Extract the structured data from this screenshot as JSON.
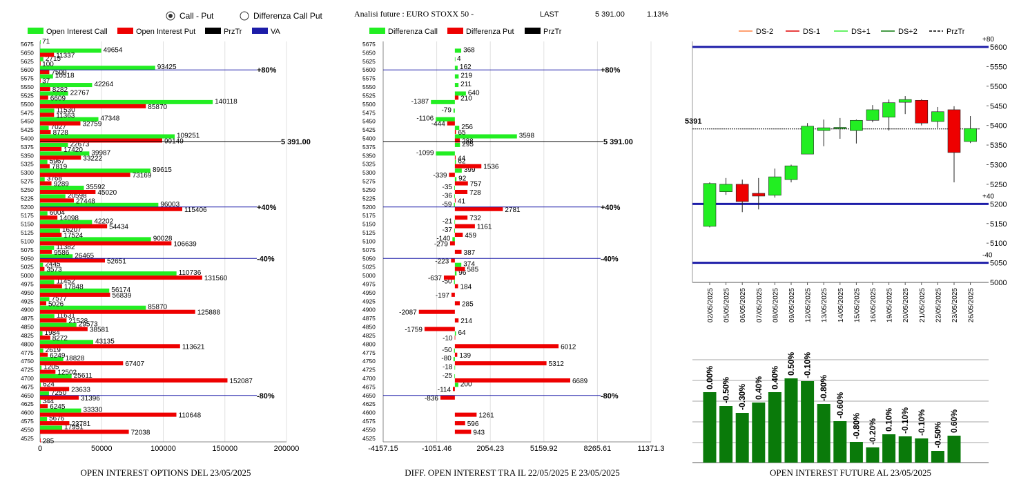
{
  "header": {
    "options": [
      "Call - Put",
      "Differenza Call Put"
    ],
    "selected": 0,
    "title": "Analisi future : EURO STOXX 50 -",
    "last_label": "LAST",
    "last_value": "5 391.00",
    "change": "1.13%"
  },
  "chart_data": [
    {
      "type": "hbar",
      "title": "OPEN INTEREST OPTIONS DEL 23/05/2025",
      "categories": [
        5675,
        5650,
        5625,
        5600,
        5575,
        5550,
        5525,
        5500,
        5475,
        5450,
        5425,
        5400,
        5375,
        5350,
        5325,
        5300,
        5275,
        5250,
        5225,
        5200,
        5175,
        5150,
        5125,
        5100,
        5075,
        5050,
        5025,
        5000,
        4975,
        4950,
        4925,
        4900,
        4875,
        4850,
        4825,
        4800,
        4775,
        4750,
        4725,
        4700,
        4675,
        4650,
        4625,
        4600,
        4575,
        4550,
        4525
      ],
      "series": [
        {
          "name": "Open Interest Call",
          "color": "#22ee22",
          "values": [
            71,
            49654,
            2715,
            93425,
            10518,
            42264,
            22767,
            140118,
            11530,
            47348,
            7027,
            109251,
            22673,
            39987,
            5967,
            89615,
            3768,
            35592,
            20598,
            96003,
            6004,
            42202,
            16207,
            90028,
            11382,
            26465,
            2445,
            110736,
            11452,
            56174,
            7577,
            85870,
            11631,
            29573,
            1984,
            43135,
            2619,
            18828,
            1205,
            25611,
            624,
            7250,
            344,
            33330,
            5676,
            17951,
            null
          ]
        },
        {
          "name": "Open Interest Put",
          "color": "#ee0000",
          "values": [
            null,
            11337,
            100,
            7500,
            37,
            8282,
            6609,
            85870,
            11363,
            32759,
            8728,
            99149,
            17420,
            33222,
            7819,
            73169,
            9289,
            45020,
            27448,
            115406,
            14098,
            54434,
            17524,
            106639,
            9586,
            52651,
            3573,
            131560,
            17848,
            56839,
            5026,
            125888,
            21528,
            38581,
            8272,
            113621,
            6249,
            67407,
            12502,
            152087,
            23633,
            31396,
            6245,
            110648,
            23781,
            72038,
            285
          ]
        }
      ],
      "extra_legend": [
        {
          "name": "PrzTr",
          "color": "#000000"
        },
        {
          "name": "VA",
          "color": "#1c1ca8"
        }
      ],
      "va_color": "#1c1ca8",
      "price_line": {
        "value": 5391,
        "label": "5 391.00"
      },
      "va_lines": [
        {
          "value": 5600,
          "label": "+80%"
        },
        {
          "value": 5200,
          "label": "+40%"
        },
        {
          "value": 5050,
          "label": "-40%"
        },
        {
          "value": 4650,
          "label": "-80%"
        }
      ],
      "xlim": [
        0,
        200000
      ],
      "xticks": [
        0,
        50000,
        100000,
        150000,
        200000
      ],
      "grid": true
    },
    {
      "type": "hbar",
      "title": "DIFF. OPEN INTEREST TRA IL 22/05/2025 E 23/05/2025",
      "categories": [
        5675,
        5650,
        5625,
        5600,
        5575,
        5550,
        5525,
        5500,
        5475,
        5450,
        5425,
        5400,
        5375,
        5350,
        5325,
        5300,
        5275,
        5250,
        5225,
        5200,
        5175,
        5150,
        5125,
        5100,
        5075,
        5050,
        5025,
        5000,
        4975,
        4950,
        4925,
        4900,
        4875,
        4850,
        4825,
        4800,
        4775,
        4750,
        4725,
        4700,
        4675,
        4650,
        4625,
        4600,
        4575,
        4550,
        4525
      ],
      "series": [
        {
          "name": "Differenza Call",
          "color": "#22ee22",
          "values": [
            null,
            368,
            4,
            162,
            219,
            211,
            640,
            -1387,
            -79,
            -1106,
            256,
            3598,
            295,
            -1099,
            62,
            399,
            92,
            -35,
            -36,
            -59,
            null,
            -21,
            -37,
            -140,
            null,
            null,
            374,
            96,
            -50,
            null,
            null,
            null,
            null,
            null,
            64,
            null,
            -50,
            -80,
            -18,
            -25,
            200,
            null,
            null,
            null,
            null,
            null,
            null
          ]
        },
        {
          "name": "Differenza Put",
          "color": "#ee0000",
          "values": [
            null,
            null,
            null,
            null,
            null,
            null,
            210,
            null,
            null,
            -444,
            65,
            288,
            null,
            44,
            1536,
            -339,
            757,
            728,
            41,
            2781,
            732,
            1161,
            459,
            -279,
            387,
            -223,
            585,
            -637,
            184,
            -197,
            285,
            -2087,
            214,
            -1759,
            -10,
            6012,
            139,
            5312,
            null,
            6689,
            -114,
            -836,
            null,
            1261,
            596,
            943,
            null
          ]
        }
      ],
      "extra_legend": [
        {
          "name": "PrzTr",
          "color": "#000000"
        }
      ],
      "va_color": "#1c1ca8",
      "price_line": {
        "value": 5391,
        "label": "5 391.00"
      },
      "va_lines": [
        {
          "value": 5600,
          "label": "+80%"
        },
        {
          "value": 5200,
          "label": "+40%"
        },
        {
          "value": 5050,
          "label": "-40%"
        },
        {
          "value": 4650,
          "label": "-80%"
        }
      ],
      "xlim": [
        -4157.15,
        11371.3
      ],
      "xticks": [
        -4157.15,
        -1051.46,
        2054.23,
        5159.92,
        8265.61,
        11371.3
      ],
      "grid": true
    },
    {
      "type": "candlestick",
      "x": [
        "02/05/2025",
        "05/05/2025",
        "06/05/2025",
        "07/05/2025",
        "08/05/2025",
        "09/05/2025",
        "12/05/2025",
        "13/05/2025",
        "14/05/2025",
        "15/05/2025",
        "16/05/2025",
        "19/05/2025",
        "20/05/2025",
        "21/05/2025",
        "22/05/2025",
        "23/05/2025",
        "26/05/2025"
      ],
      "open": [
        5143,
        5231,
        5250,
        5227,
        5222,
        5262,
        5327,
        5387,
        5392,
        5387,
        5413,
        5421,
        5459,
        5464,
        5410,
        5440,
        5359
      ],
      "high": [
        5255,
        5266,
        5262,
        5266,
        5290,
        5300,
        5406,
        5415,
        5419,
        5415,
        5452,
        5466,
        5475,
        5467,
        5447,
        5449,
        5424
      ],
      "low": [
        5140,
        5223,
        5179,
        5186,
        5216,
        5255,
        5327,
        5347,
        5366,
        5354,
        5408,
        5387,
        5429,
        5400,
        5394,
        5255,
        5355
      ],
      "close": [
        5252,
        5250,
        5206,
        5220,
        5269,
        5297,
        5398,
        5394,
        5395,
        5413,
        5440,
        5458,
        5466,
        5406,
        5435,
        5331,
        5392
      ],
      "up_color": "#22ee22",
      "down_color": "#ee0000",
      "legend": [
        {
          "name": "DS-2",
          "color": "#ff8040"
        },
        {
          "name": "DS-1",
          "color": "#e00000"
        },
        {
          "name": "DS+1",
          "color": "#33ee33"
        },
        {
          "name": "DS+2",
          "color": "#0a7a0a"
        },
        {
          "name": "PrzTr",
          "color": "#000000",
          "dash": true
        }
      ],
      "price_line": {
        "value": 5391
      },
      "va_color": "#1c1ca8",
      "va_lines": [
        {
          "value": 5600,
          "label": "+80"
        },
        {
          "value": 5200,
          "label": "+40"
        },
        {
          "value": 5050,
          "label": "-40"
        }
      ],
      "ylim": [
        5000,
        5600
      ],
      "yticks": [
        5000,
        5050,
        5100,
        5150,
        5200,
        5250,
        5300,
        5350,
        5400,
        5450,
        5500,
        5550,
        5600
      ]
    },
    {
      "type": "bar",
      "title": "OPEN INTEREST FUTURE AL 23/05/2025",
      "values": [
        102,
        82,
        72,
        87,
        102,
        122,
        118,
        85,
        60,
        30,
        22,
        41,
        38,
        35,
        17,
        39
      ],
      "labels": [
        "0.00%",
        "-0.50%",
        "-0.30%",
        "0.40%",
        "0.40%",
        "0.50%",
        "-0.10%",
        "-0.80%",
        "-0.60%",
        "-0.80%",
        "-0.20%",
        "0.10%",
        "-0.10%",
        "-0.10%",
        "-0.50%",
        "0.60%"
      ],
      "color": "#0a7a0a"
    }
  ]
}
